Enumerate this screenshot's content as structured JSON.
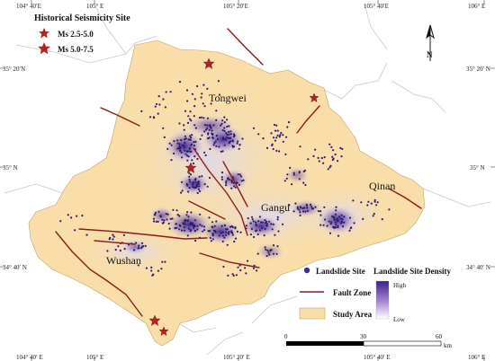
{
  "seismicity_legend": {
    "title": "Historical Seismicity Site",
    "items": [
      {
        "label": "Ms 2.5-5.0",
        "color": "#b22222"
      },
      {
        "label": "Ms 5.0-7.5",
        "color": "#b22222"
      }
    ]
  },
  "place_names": [
    "Tongwei",
    "Gangu",
    "Qinan",
    "Wushan"
  ],
  "top_ticks": [
    "104° 40′E",
    "105° E",
    "105° 20′E",
    "105° 40′E",
    "106° E"
  ],
  "bottom_ticks": [
    "104° 40′ E",
    "105° E",
    "105° 20′ E",
    "105° 40′ E",
    "106° E"
  ],
  "left_ticks": [
    "35° 20′N",
    "35° N",
    "34° 40′ N"
  ],
  "right_ticks": [
    "35° 20′ N",
    "35° N",
    "34° 40′ N"
  ],
  "north_label": "N",
  "legend": {
    "landslide_site": "Landslide Site",
    "fault_zone": "Fault Zone",
    "study_area": "Study Area",
    "density_title": "Landslide Site Density",
    "high": "High",
    "low": "Low"
  },
  "scale_bar": {
    "labels": [
      "0",
      "30",
      "60"
    ],
    "unit": "km"
  },
  "colors": {
    "study_area": "#f9deaa",
    "density": "#3d1f8f",
    "landslide_point": "#2b1a6e",
    "fault": "#8b1a1a",
    "star": "#b22222",
    "boundary": "#bdbdbd"
  }
}
